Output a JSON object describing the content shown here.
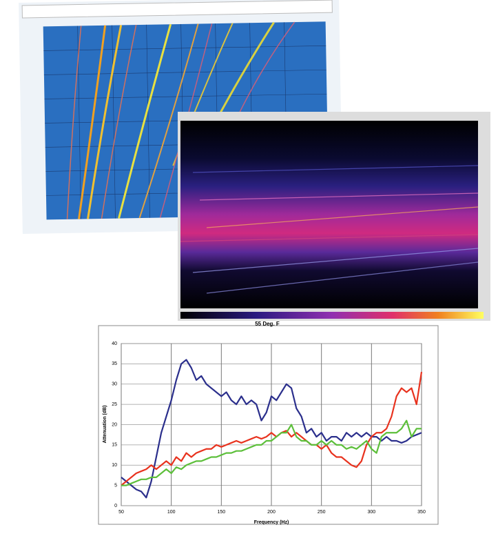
{
  "chart_data": {
    "type": "line",
    "title": "55 Deg. F",
    "x_label": "Frequency (Hz)",
    "y_label": "Attenuation (dB)",
    "x": [
      50,
      55,
      60,
      65,
      70,
      75,
      80,
      85,
      90,
      95,
      100,
      105,
      110,
      115,
      120,
      125,
      130,
      135,
      140,
      145,
      150,
      155,
      160,
      165,
      170,
      175,
      180,
      185,
      190,
      195,
      200,
      205,
      210,
      215,
      220,
      225,
      230,
      235,
      240,
      245,
      250,
      255,
      260,
      265,
      270,
      275,
      280,
      285,
      290,
      295,
      300,
      305,
      310,
      315,
      320,
      325,
      330,
      335,
      340,
      345,
      350
    ],
    "series": [
      {
        "color": "#2b2f8c",
        "values": [
          7,
          6,
          5,
          4,
          3.5,
          2,
          6,
          12,
          18,
          22,
          26,
          31,
          35,
          36,
          34,
          31,
          32,
          30,
          29,
          28,
          27,
          28,
          26,
          25,
          27,
          25,
          26,
          25,
          21,
          23,
          27,
          26,
          28,
          30,
          29,
          24,
          22,
          18,
          19,
          17,
          18,
          16,
          17,
          17,
          16,
          18,
          17,
          18,
          17,
          18,
          17,
          17,
          16,
          17,
          16,
          16,
          15.5,
          16,
          17,
          17.5,
          18
        ]
      },
      {
        "color": "#e8321e",
        "values": [
          5,
          6,
          7,
          8,
          8.5,
          9,
          10,
          9,
          10,
          11,
          10,
          12,
          11,
          13,
          12,
          13,
          13.5,
          14,
          14,
          15,
          14.5,
          15,
          15.5,
          16,
          15.5,
          16,
          16.5,
          17,
          16.5,
          17,
          18,
          17,
          18,
          18.5,
          17,
          18,
          17,
          16,
          15,
          15,
          14,
          15,
          13,
          12,
          12,
          11,
          10,
          9.5,
          11,
          15,
          17,
          18,
          18,
          19,
          22,
          27,
          29,
          28,
          29,
          25,
          33
        ]
      },
      {
        "color": "#5cbf3a",
        "values": [
          5,
          5,
          5.5,
          6,
          6.5,
          6.5,
          7,
          7,
          8,
          9,
          8,
          9.5,
          9,
          10,
          10.5,
          11,
          11,
          11.5,
          12,
          12,
          12.5,
          13,
          13,
          13.5,
          13.5,
          14,
          14.5,
          15,
          15,
          16,
          16,
          17,
          18,
          18,
          20,
          17,
          16,
          16,
          15,
          15,
          16,
          15,
          16,
          15,
          15,
          14,
          14.5,
          14,
          15,
          16,
          14,
          13,
          17,
          18,
          18,
          18,
          19,
          21,
          17,
          19,
          19
        ]
      }
    ],
    "xlim": [
      50,
      350
    ],
    "xticks": [
      50,
      100,
      150,
      200,
      250,
      300,
      350
    ],
    "ylim": [
      0,
      40
    ],
    "yticks": [
      0,
      5,
      10,
      15,
      20,
      25,
      30,
      35,
      40
    ],
    "grid": true
  }
}
